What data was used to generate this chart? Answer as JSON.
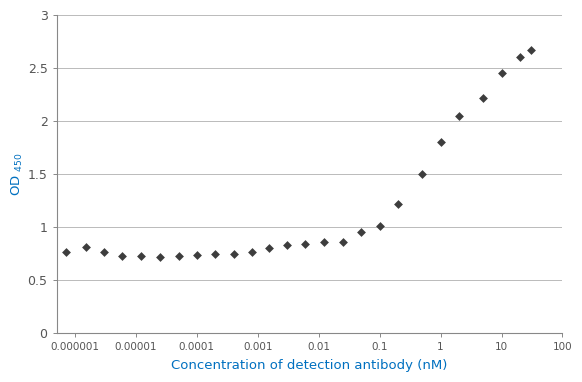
{
  "xlabel": "Concentration of detection antibody (nM)",
  "ylabel_text": "OD $_{450}$",
  "xlabel_color": "#0070c0",
  "ylabel_color": "#0070c0",
  "xlim": [
    5e-07,
    100
  ],
  "ylim": [
    0,
    3.0
  ],
  "yticks": [
    0,
    0.5,
    1.0,
    1.5,
    2.0,
    2.5,
    3.0
  ],
  "xtick_labels": [
    "0.000001",
    "0.00001",
    "0.0001",
    "0.001",
    "0.01",
    "0.1",
    "1",
    "10",
    "100"
  ],
  "xtick_values": [
    1e-06,
    1e-05,
    0.0001,
    0.001,
    0.01,
    0.1,
    1,
    10,
    100
  ],
  "data_x": [
    7e-07,
    1.5e-06,
    3e-06,
    6e-06,
    1.2e-05,
    2.5e-05,
    5e-05,
    0.0001,
    0.0002,
    0.0004,
    0.0008,
    0.0015,
    0.003,
    0.006,
    0.012,
    0.025,
    0.05,
    0.1,
    0.2,
    0.5,
    1.0,
    2.0,
    5.0,
    10.0,
    20.0,
    30.0
  ],
  "data_y": [
    0.77,
    0.81,
    0.77,
    0.73,
    0.73,
    0.72,
    0.73,
    0.74,
    0.75,
    0.75,
    0.77,
    0.8,
    0.83,
    0.84,
    0.86,
    0.86,
    0.95,
    1.01,
    1.22,
    1.5,
    1.8,
    2.05,
    2.22,
    2.45,
    2.6,
    2.67
  ],
  "marker_color": "#3d3d3d",
  "line_color": "#2a2a2a",
  "marker_size": 4.5,
  "line_width": 1.5,
  "grid_color": "#b0b0b0",
  "background_color": "#ffffff",
  "spine_color": "#888888",
  "tick_color": "#555555"
}
